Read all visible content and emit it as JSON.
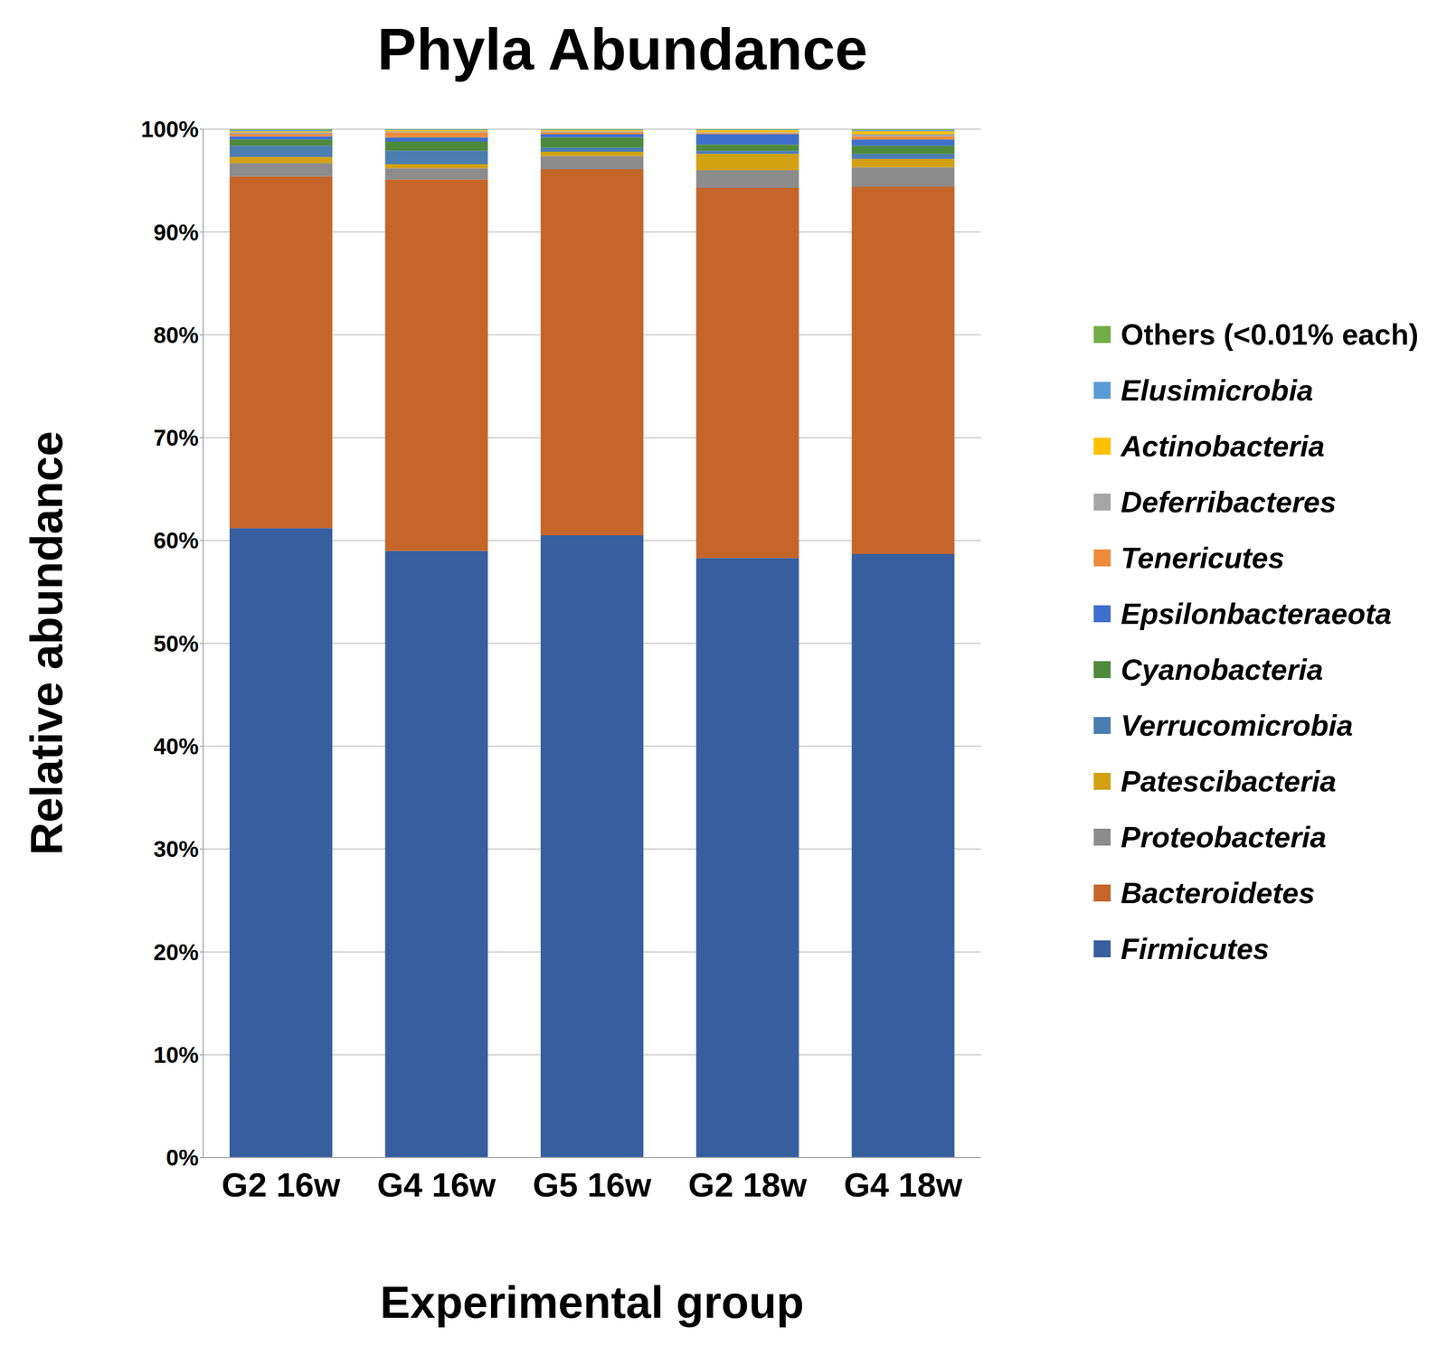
{
  "chart_data": {
    "type": "bar",
    "title": "Phyla Abundance",
    "xlabel": "Experimental group",
    "ylabel": "Relative abundance",
    "categories": [
      "G2 16w",
      "G4 16w",
      "G5 16w",
      "G2 18w",
      "G4 18w"
    ],
    "series": [
      {
        "name": "Firmicutes",
        "color": "#375e9f",
        "values": [
          61.2,
          59.0,
          60.5,
          58.3,
          58.7
        ]
      },
      {
        "name": "Bacteroidetes",
        "color": "#c5652a",
        "values": [
          34.2,
          36.1,
          35.6,
          36.0,
          35.7
        ]
      },
      {
        "name": "Proteobacteria",
        "color": "#8c8c8c",
        "values": [
          1.3,
          1.1,
          1.3,
          1.7,
          1.9
        ]
      },
      {
        "name": "Patescibacteria",
        "color": "#d2a013",
        "values": [
          0.6,
          0.4,
          0.4,
          1.6,
          0.8
        ]
      },
      {
        "name": "Verrucomicrobia",
        "color": "#4a7eb0",
        "values": [
          1.1,
          1.3,
          0.4,
          0.3,
          0.5
        ]
      },
      {
        "name": "Cyanobacteria",
        "color": "#4e8a3c",
        "values": [
          0.6,
          0.9,
          1.0,
          0.6,
          0.8
        ]
      },
      {
        "name": "Epsilonbacteraeota",
        "color": "#3f6fcc",
        "values": [
          0.3,
          0.4,
          0.3,
          1.0,
          0.6
        ]
      },
      {
        "name": "Tenericutes",
        "color": "#ee8a3c",
        "values": [
          0.2,
          0.5,
          0.2,
          0.1,
          0.3
        ]
      },
      {
        "name": "Deferribacteres",
        "color": "#a5a5a5",
        "values": [
          0.2,
          0.1,
          0.1,
          0.1,
          0.2
        ]
      },
      {
        "name": "Actinobacteria",
        "color": "#ffc000",
        "values": [
          0.1,
          0.1,
          0.1,
          0.2,
          0.3
        ]
      },
      {
        "name": "Elusimicrobia",
        "color": "#5b9bd5",
        "values": [
          0.1,
          0.05,
          0.05,
          0.05,
          0.1
        ]
      },
      {
        "name": "Others (<0.01% each)",
        "color": "#70ad47",
        "values": [
          0.1,
          0.05,
          0.05,
          0.05,
          0.1
        ]
      }
    ],
    "ylim": [
      0,
      100
    ],
    "yticks": [
      {
        "value": 0,
        "label": "0%"
      },
      {
        "value": 10,
        "label": "10%"
      },
      {
        "value": 20,
        "label": "20%"
      },
      {
        "value": 30,
        "label": "30%"
      },
      {
        "value": 40,
        "label": "40%"
      },
      {
        "value": 50,
        "label": "50%"
      },
      {
        "value": 60,
        "label": "60%"
      },
      {
        "value": 70,
        "label": "70%"
      },
      {
        "value": 80,
        "label": "80%"
      },
      {
        "value": 90,
        "label": "90%"
      },
      {
        "value": 100,
        "label": "100%"
      }
    ],
    "grid": true,
    "stacked": true,
    "legend": "right"
  }
}
